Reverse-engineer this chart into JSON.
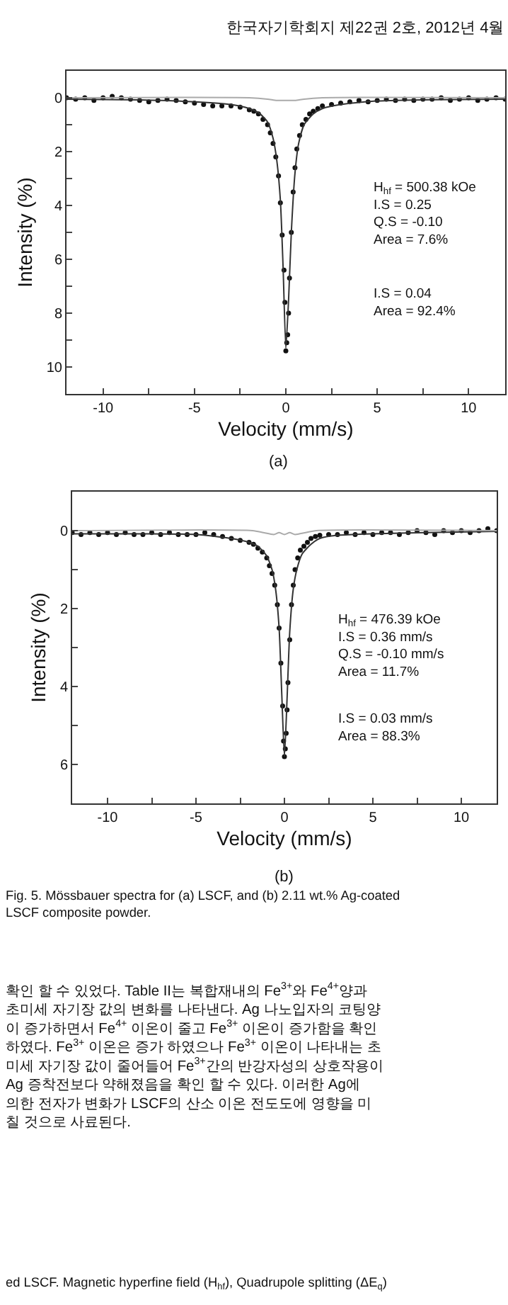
{
  "chart_data": [
    {
      "type": "scatter",
      "xlabel": "Velocity (mm/s)",
      "ylabel": "Intensity (%)",
      "xlim": [
        -12,
        12
      ],
      "ylim": [
        11,
        -1
      ],
      "xticks": [
        -10,
        {
          "value": -7.5,
          "label": null
        },
        -5,
        {
          "value": -2.5,
          "label": null
        },
        0,
        {
          "value": 2.5,
          "label": null
        },
        5,
        {
          "value": 7.5,
          "label": null
        },
        10
      ],
      "yticks": [
        0,
        {
          "value": 1,
          "label": null
        },
        2,
        {
          "value": 3,
          "label": null
        },
        4,
        {
          "value": 5,
          "label": null
        },
        6,
        {
          "value": 7,
          "label": null
        },
        8,
        {
          "value": 9,
          "label": null
        },
        10
      ],
      "series": [
        {
          "marker": "circle",
          "color": "#111111",
          "x": [
            -12,
            -11.5,
            -11,
            -10.5,
            -10,
            -9.5,
            -9,
            -8.5,
            -8,
            -7.5,
            -7,
            -6.5,
            -6,
            -5.5,
            -5,
            -4.5,
            -4,
            -3.5,
            -3,
            -2.5,
            -2,
            -1.75,
            -1.5,
            -1.25,
            -1,
            -0.85,
            -0.7,
            -0.55,
            -0.4,
            -0.3,
            -0.2,
            -0.1,
            -0.05,
            0,
            0.05,
            0.1,
            0.15,
            0.2,
            0.3,
            0.4,
            0.5,
            0.6,
            0.75,
            0.9,
            1.1,
            1.3,
            1.5,
            1.75,
            2,
            2.5,
            3,
            3.5,
            4,
            4.5,
            5,
            5.5,
            6,
            6.5,
            7,
            7.5,
            8,
            8.5,
            9,
            9.5,
            10,
            10.5,
            11,
            11.5,
            12
          ],
          "values": [
            0,
            0.05,
            0,
            0.1,
            0,
            -0.05,
            0,
            0.05,
            0.1,
            0.15,
            0.1,
            0.05,
            0.1,
            0.15,
            0.2,
            0.25,
            0.3,
            0.3,
            0.3,
            0.35,
            0.45,
            0.5,
            0.6,
            0.8,
            1.0,
            1.3,
            1.7,
            2.2,
            2.9,
            3.9,
            5.1,
            6.4,
            7.6,
            9.4,
            9.1,
            8.8,
            8.0,
            6.7,
            5.0,
            3.5,
            2.6,
            1.9,
            1.4,
            1.0,
            0.8,
            0.6,
            0.5,
            0.4,
            0.3,
            0.25,
            0.2,
            0.15,
            0.1,
            0.15,
            0.1,
            0.05,
            0.1,
            0.05,
            0.1,
            0.05,
            0.05,
            0,
            0.1,
            0.05,
            0,
            0.1,
            0.05,
            0,
            0.05
          ]
        },
        {
          "type": "line",
          "color": "#333333",
          "x": [
            -12,
            -8,
            -5,
            -3,
            -2,
            -1.5,
            -1,
            -0.7,
            -0.5,
            -0.3,
            -0.15,
            0,
            0.15,
            0.3,
            0.5,
            0.7,
            1,
            1.5,
            2,
            3,
            5,
            8,
            12
          ],
          "values": [
            0.05,
            0.08,
            0.15,
            0.25,
            0.4,
            0.55,
            0.9,
            1.5,
            2.3,
            3.8,
            6.3,
            9.3,
            7.5,
            5.0,
            2.8,
            1.7,
            1.0,
            0.6,
            0.4,
            0.25,
            0.12,
            0.07,
            0.05
          ]
        },
        {
          "type": "line",
          "color": "#aaaaaa",
          "x": [
            -12,
            -2,
            -1,
            -0.5,
            0,
            0.5,
            1,
            2,
            12
          ],
          "values": [
            0,
            0,
            0.05,
            0.1,
            0.1,
            0.1,
            0.05,
            0,
            0
          ]
        }
      ],
      "annotations": [
        "한국자기학회지 제22권 2호, 2012년 4월",
        "H$_{hf}$ = 500.38 kOe\nI.S = 0.25\nQ.S = -0.10\nArea = 7.6%",
        "I.S = 0.04\nArea = 92.4%",
        "(a)"
      ]
    },
    {
      "type": "scatter",
      "xlabel": "Velocity (mm/s)",
      "ylabel": "Intensity (%)",
      "xlim": [
        -12,
        12
      ],
      "ylim": [
        7,
        -1
      ],
      "xticks": [
        -10,
        {
          "value": -7.5,
          "label": null
        },
        -5,
        {
          "value": -2.5,
          "label": null
        },
        0,
        {
          "value": 2.5,
          "label": null
        },
        5,
        {
          "value": 7.5,
          "label": null
        },
        10
      ],
      "yticks": [
        0,
        {
          "value": 1,
          "label": null
        },
        2,
        {
          "value": 3,
          "label": null
        },
        4,
        {
          "value": 5,
          "label": null
        },
        6
      ],
      "series": [
        {
          "marker": "circle",
          "color": "#111111",
          "x": [
            -12,
            -11.5,
            -11,
            -10.5,
            -10,
            -9.5,
            -9,
            -8.5,
            -8,
            -7.5,
            -7,
            -6.5,
            -6,
            -5.5,
            -5,
            -4.5,
            -4,
            -3.5,
            -3,
            -2.5,
            -2,
            -1.75,
            -1.5,
            -1.25,
            -1,
            -0.85,
            -0.7,
            -0.55,
            -0.4,
            -0.3,
            -0.2,
            -0.1,
            -0.05,
            0,
            0.05,
            0.1,
            0.15,
            0.2,
            0.3,
            0.4,
            0.5,
            0.6,
            0.75,
            0.9,
            1.1,
            1.3,
            1.5,
            1.75,
            2,
            2.5,
            3,
            3.5,
            4,
            4.5,
            5,
            5.5,
            6,
            6.5,
            7,
            7.5,
            8,
            8.5,
            9,
            9.5,
            10,
            10.5,
            11,
            11.5,
            12
          ],
          "values": [
            0.05,
            0.1,
            0.05,
            0.1,
            0.05,
            0.1,
            0.05,
            0.1,
            0.1,
            0.05,
            0.1,
            0.05,
            0.1,
            0.1,
            0.1,
            0.05,
            0.1,
            0.15,
            0.2,
            0.25,
            0.3,
            0.35,
            0.45,
            0.55,
            0.7,
            0.9,
            1.1,
            1.4,
            1.9,
            2.5,
            3.4,
            4.5,
            5.4,
            5.8,
            5.6,
            5.2,
            4.6,
            3.9,
            2.8,
            1.9,
            1.4,
            1.0,
            0.7,
            0.5,
            0.4,
            0.3,
            0.2,
            0.15,
            0.12,
            0.1,
            0.1,
            0.05,
            0.1,
            0.05,
            0.1,
            0.05,
            0.05,
            0.1,
            0.05,
            0,
            0.05,
            0.1,
            0,
            0.05,
            0,
            0.05,
            0,
            -0.05,
            0
          ]
        },
        {
          "type": "line",
          "color": "#333333",
          "x": [
            -12,
            -8,
            -5,
            -3,
            -2,
            -1.5,
            -1,
            -0.7,
            -0.5,
            -0.3,
            -0.15,
            0,
            0.15,
            0.3,
            0.5,
            0.7,
            1,
            1.5,
            2,
            3,
            5,
            8,
            12
          ],
          "values": [
            0.08,
            0.08,
            0.1,
            0.2,
            0.3,
            0.4,
            0.65,
            1.0,
            1.5,
            2.5,
            4.2,
            5.8,
            4.3,
            2.6,
            1.5,
            1.0,
            0.6,
            0.35,
            0.2,
            0.12,
            0.08,
            0.05,
            0.02
          ]
        },
        {
          "type": "line",
          "color": "#aaaaaa",
          "x": [
            -12,
            -1.8,
            -1.2,
            -0.6,
            -0.3,
            0,
            0.3,
            0.6,
            1.2,
            1.8,
            12
          ],
          "values": [
            0,
            0,
            0.05,
            0.1,
            0.05,
            0.1,
            0.05,
            0.1,
            0.05,
            0,
            0
          ]
        }
      ],
      "annotations": [
        "H$_{hf}$ = 476.39 kOe\nI.S = 0.36 mm/s\nQ.S = -0.10 mm/s\nArea = 11.7%",
        "I.S = 0.03 mm/s\nArea = 88.3%",
        "(b)",
        "Fig. 5. Mössbauer spectra for (a) LSCF, and (b) 2.11 wt.% Ag-coated\nLSCF composite powder.",
        "확인 할 수 있었다. Table II는 복합재내의 Fe$^{3+}$와 Fe$^{4+}$양과\n초미세 자기장 값의 변화를 나타낸다. Ag 나노입자의 코팅양\n이 증가하면서 Fe$^{4+}$ 이온이 줄고 Fe$^{3+}$ 이온이 증가함을 확인\n하였다. Fe$^{3+}$ 이온은 증가 하였으나 Fe$^{3+}$ 이온이 나타내는 초\n미세 자기장 값이 줄어들어 Fe$^{3+}$간의 반강자성의 상호작용이\nAg 증착전보다 약해졌음을 확인 할 수 있다. 이러한 Ag에\n의한 전자가 변화가 LSCF의 산소 이온 전도도에 영향을 미\n칠 것으로 사료된다.",
        "ed LSCF. Magnetic hyperfine field (H$_{hf}$), Quadrupole splitting (ΔE$_{q}$)"
      ]
    }
  ]
}
